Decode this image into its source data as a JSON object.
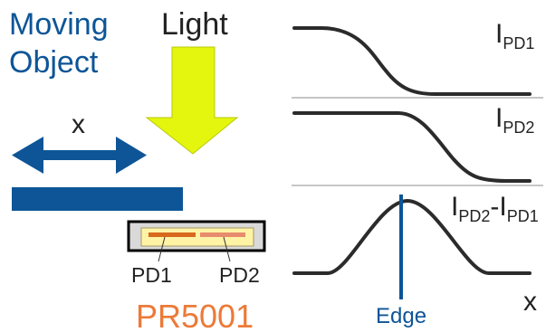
{
  "labels": {
    "moving_object_line1": "Moving",
    "moving_object_line2": "Object",
    "light": "Light",
    "x_motion": "x",
    "pd1": "PD1",
    "pd2": "PD2",
    "product": "PR5001",
    "edge": "Edge",
    "x_axis": "x"
  },
  "plots": {
    "ipd1": {
      "main": "I",
      "sub": "PD1"
    },
    "ipd2": {
      "main": "I",
      "sub": "PD2"
    },
    "diff": {
      "main1": "I",
      "sub1": "PD2",
      "dash": "-",
      "main2": "I",
      "sub2": "PD1"
    }
  },
  "colors": {
    "blue": "#0d5597",
    "light_arrow": "#e4f60d",
    "orange": "#ec7a38",
    "sensor_fill": "#fff3a6",
    "package_fill": "#d9d9d9",
    "curve": "#2b2b2b",
    "divider": "#8c8c8c"
  }
}
